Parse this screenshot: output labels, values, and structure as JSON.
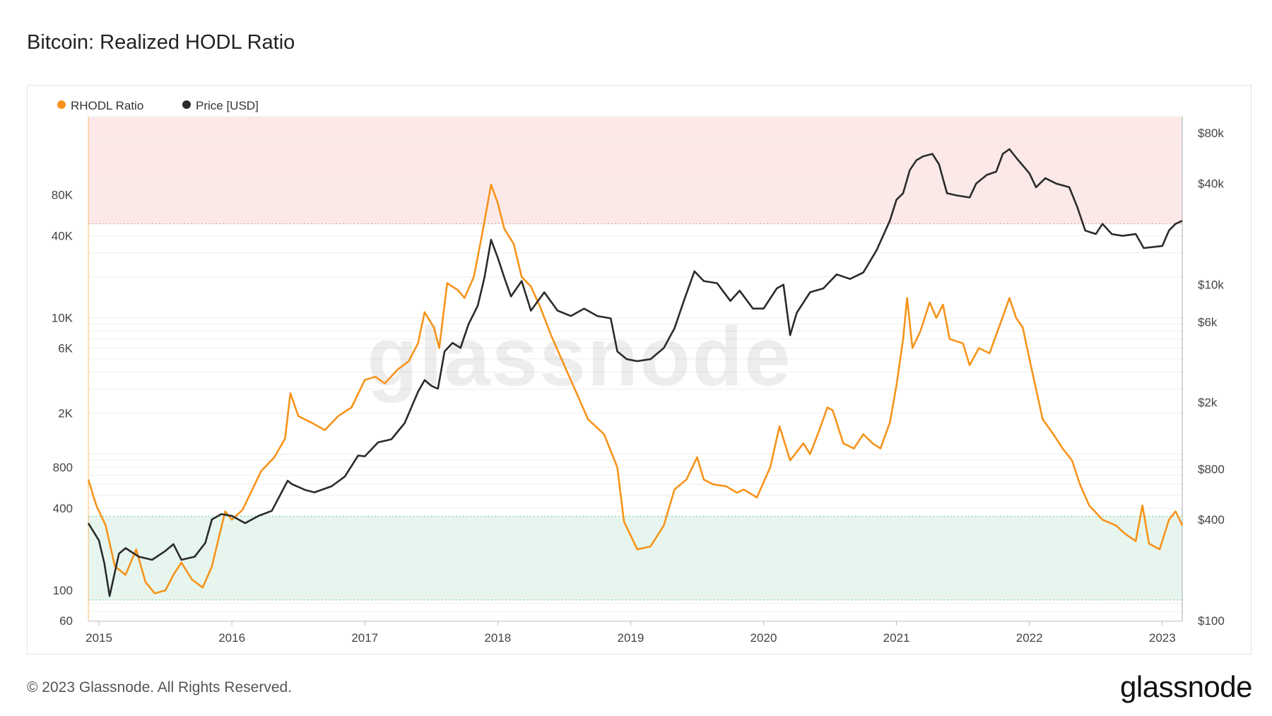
{
  "title": "Bitcoin: Realized HODL Ratio",
  "footer": "© 2023 Glassnode. All Rights Reserved.",
  "brand": "glassnode",
  "watermark": "glassnode",
  "colors": {
    "rhodl": "#f7931a",
    "price": "#2b2b2b",
    "top_band": "#fde8e8",
    "bottom_band": "#e6f6ee",
    "grid": "#eeeeee"
  },
  "chart_data": {
    "type": "line",
    "title": "Bitcoin: Realized HODL Ratio",
    "x_ticks": [
      "2015",
      "2016",
      "2017",
      "2018",
      "2019",
      "2020",
      "2021",
      "2022",
      "2023"
    ],
    "x_range": [
      2014.92,
      2023.15
    ],
    "y_left": {
      "scale": "log",
      "range": [
        60,
        300000
      ],
      "tick_labels": [
        "80K",
        "40K",
        "10K",
        "6K",
        "2K",
        "800",
        "400",
        "100",
        "60"
      ],
      "tick_values": [
        80000,
        40000,
        10000,
        6000,
        2000,
        800,
        400,
        100,
        60
      ]
    },
    "y_right": {
      "scale": "log",
      "range": [
        100,
        100000
      ],
      "tick_labels": [
        "$80k",
        "$40k",
        "$10k",
        "$6k",
        "$2k",
        "$800",
        "$400",
        "$100"
      ],
      "tick_values": [
        80000,
        40000,
        10000,
        6000,
        2000,
        800,
        400,
        100
      ]
    },
    "bands": [
      {
        "name": "top",
        "axis": "left",
        "from": 49000,
        "to": 300000
      },
      {
        "name": "bottom",
        "axis": "left",
        "from": 85,
        "to": 350
      }
    ],
    "legend": {
      "position": "top-left"
    },
    "series": [
      {
        "name": "RHODL Ratio",
        "axis": "left",
        "points": [
          [
            2014.92,
            650
          ],
          [
            2014.98,
            420
          ],
          [
            2015.05,
            300
          ],
          [
            2015.12,
            150
          ],
          [
            2015.2,
            130
          ],
          [
            2015.28,
            200
          ],
          [
            2015.35,
            115
          ],
          [
            2015.42,
            95
          ],
          [
            2015.5,
            100
          ],
          [
            2015.56,
            130
          ],
          [
            2015.62,
            160
          ],
          [
            2015.7,
            120
          ],
          [
            2015.78,
            105
          ],
          [
            2015.85,
            150
          ],
          [
            2015.9,
            240
          ],
          [
            2015.95,
            380
          ],
          [
            2016.0,
            330
          ],
          [
            2016.08,
            390
          ],
          [
            2016.15,
            540
          ],
          [
            2016.22,
            750
          ],
          [
            2016.32,
            950
          ],
          [
            2016.4,
            1300
          ],
          [
            2016.44,
            2800
          ],
          [
            2016.5,
            1900
          ],
          [
            2016.6,
            1700
          ],
          [
            2016.7,
            1500
          ],
          [
            2016.8,
            1900
          ],
          [
            2016.9,
            2200
          ],
          [
            2017.0,
            3500
          ],
          [
            2017.08,
            3700
          ],
          [
            2017.15,
            3300
          ],
          [
            2017.25,
            4200
          ],
          [
            2017.33,
            4800
          ],
          [
            2017.4,
            6500
          ],
          [
            2017.45,
            11000
          ],
          [
            2017.52,
            8500
          ],
          [
            2017.56,
            6000
          ],
          [
            2017.62,
            18000
          ],
          [
            2017.7,
            16000
          ],
          [
            2017.75,
            14000
          ],
          [
            2017.82,
            20000
          ],
          [
            2017.88,
            40000
          ],
          [
            2017.95,
            95000
          ],
          [
            2018.0,
            70000
          ],
          [
            2018.05,
            45000
          ],
          [
            2018.12,
            35000
          ],
          [
            2018.18,
            20000
          ],
          [
            2018.25,
            17000
          ],
          [
            2018.32,
            12000
          ],
          [
            2018.4,
            7500
          ],
          [
            2018.5,
            4500
          ],
          [
            2018.58,
            3000
          ],
          [
            2018.68,
            1800
          ],
          [
            2018.8,
            1400
          ],
          [
            2018.9,
            800
          ],
          [
            2018.95,
            320
          ],
          [
            2019.05,
            200
          ],
          [
            2019.15,
            210
          ],
          [
            2019.25,
            300
          ],
          [
            2019.33,
            550
          ],
          [
            2019.42,
            650
          ],
          [
            2019.5,
            950
          ],
          [
            2019.55,
            650
          ],
          [
            2019.62,
            600
          ],
          [
            2019.72,
            580
          ],
          [
            2019.8,
            520
          ],
          [
            2019.85,
            550
          ],
          [
            2019.95,
            480
          ],
          [
            2020.05,
            800
          ],
          [
            2020.12,
            1600
          ],
          [
            2020.2,
            900
          ],
          [
            2020.3,
            1200
          ],
          [
            2020.35,
            1000
          ],
          [
            2020.42,
            1500
          ],
          [
            2020.48,
            2200
          ],
          [
            2020.52,
            2100
          ],
          [
            2020.6,
            1200
          ],
          [
            2020.68,
            1100
          ],
          [
            2020.75,
            1400
          ],
          [
            2020.82,
            1200
          ],
          [
            2020.88,
            1100
          ],
          [
            2020.95,
            1700
          ],
          [
            2021.0,
            3200
          ],
          [
            2021.05,
            7000
          ],
          [
            2021.08,
            14000
          ],
          [
            2021.12,
            6000
          ],
          [
            2021.18,
            8000
          ],
          [
            2021.25,
            13000
          ],
          [
            2021.3,
            10000
          ],
          [
            2021.35,
            12500
          ],
          [
            2021.4,
            7000
          ],
          [
            2021.5,
            6500
          ],
          [
            2021.55,
            4500
          ],
          [
            2021.62,
            6000
          ],
          [
            2021.7,
            5500
          ],
          [
            2021.78,
            9000
          ],
          [
            2021.85,
            14000
          ],
          [
            2021.9,
            10000
          ],
          [
            2021.95,
            8500
          ],
          [
            2022.0,
            5000
          ],
          [
            2022.05,
            3000
          ],
          [
            2022.1,
            1800
          ],
          [
            2022.18,
            1400
          ],
          [
            2022.25,
            1100
          ],
          [
            2022.32,
            900
          ],
          [
            2022.38,
            600
          ],
          [
            2022.45,
            420
          ],
          [
            2022.55,
            330
          ],
          [
            2022.65,
            300
          ],
          [
            2022.72,
            260
          ],
          [
            2022.8,
            230
          ],
          [
            2022.85,
            420
          ],
          [
            2022.9,
            220
          ],
          [
            2022.98,
            200
          ],
          [
            2023.05,
            330
          ],
          [
            2023.1,
            380
          ],
          [
            2023.15,
            300
          ]
        ]
      },
      {
        "name": "Price [USD]",
        "axis": "right",
        "points": [
          [
            2014.92,
            380
          ],
          [
            2015.0,
            300
          ],
          [
            2015.04,
            220
          ],
          [
            2015.08,
            140
          ],
          [
            2015.15,
            250
          ],
          [
            2015.2,
            270
          ],
          [
            2015.3,
            240
          ],
          [
            2015.4,
            230
          ],
          [
            2015.5,
            260
          ],
          [
            2015.56,
            285
          ],
          [
            2015.62,
            230
          ],
          [
            2015.72,
            240
          ],
          [
            2015.8,
            290
          ],
          [
            2015.85,
            400
          ],
          [
            2015.92,
            430
          ],
          [
            2016.0,
            420
          ],
          [
            2016.1,
            380
          ],
          [
            2016.2,
            420
          ],
          [
            2016.3,
            450
          ],
          [
            2016.42,
            680
          ],
          [
            2016.45,
            650
          ],
          [
            2016.55,
            600
          ],
          [
            2016.62,
            580
          ],
          [
            2016.75,
            630
          ],
          [
            2016.85,
            720
          ],
          [
            2016.95,
            960
          ],
          [
            2017.0,
            950
          ],
          [
            2017.1,
            1150
          ],
          [
            2017.2,
            1200
          ],
          [
            2017.3,
            1500
          ],
          [
            2017.4,
            2300
          ],
          [
            2017.45,
            2700
          ],
          [
            2017.5,
            2500
          ],
          [
            2017.55,
            2400
          ],
          [
            2017.6,
            4000
          ],
          [
            2017.66,
            4500
          ],
          [
            2017.72,
            4200
          ],
          [
            2017.78,
            5800
          ],
          [
            2017.85,
            7500
          ],
          [
            2017.9,
            11000
          ],
          [
            2017.95,
            18500
          ],
          [
            2018.0,
            14500
          ],
          [
            2018.05,
            11000
          ],
          [
            2018.1,
            8500
          ],
          [
            2018.18,
            10500
          ],
          [
            2018.25,
            7000
          ],
          [
            2018.35,
            9000
          ],
          [
            2018.45,
            7000
          ],
          [
            2018.55,
            6500
          ],
          [
            2018.65,
            7200
          ],
          [
            2018.75,
            6500
          ],
          [
            2018.85,
            6300
          ],
          [
            2018.9,
            4000
          ],
          [
            2018.97,
            3600
          ],
          [
            2019.05,
            3500
          ],
          [
            2019.15,
            3600
          ],
          [
            2019.25,
            4200
          ],
          [
            2019.33,
            5500
          ],
          [
            2019.4,
            8000
          ],
          [
            2019.48,
            12000
          ],
          [
            2019.55,
            10500
          ],
          [
            2019.65,
            10200
          ],
          [
            2019.75,
            8000
          ],
          [
            2019.82,
            9200
          ],
          [
            2019.92,
            7200
          ],
          [
            2020.0,
            7200
          ],
          [
            2020.1,
            9500
          ],
          [
            2020.15,
            10000
          ],
          [
            2020.2,
            5000
          ],
          [
            2020.25,
            6800
          ],
          [
            2020.35,
            9000
          ],
          [
            2020.45,
            9500
          ],
          [
            2020.55,
            11500
          ],
          [
            2020.65,
            10800
          ],
          [
            2020.75,
            11800
          ],
          [
            2020.85,
            16000
          ],
          [
            2020.95,
            24000
          ],
          [
            2021.0,
            32000
          ],
          [
            2021.05,
            35000
          ],
          [
            2021.1,
            48000
          ],
          [
            2021.15,
            55000
          ],
          [
            2021.2,
            58000
          ],
          [
            2021.27,
            60000
          ],
          [
            2021.32,
            52000
          ],
          [
            2021.38,
            35000
          ],
          [
            2021.45,
            34000
          ],
          [
            2021.55,
            33000
          ],
          [
            2021.6,
            40000
          ],
          [
            2021.68,
            45000
          ],
          [
            2021.75,
            47000
          ],
          [
            2021.8,
            60000
          ],
          [
            2021.85,
            64000
          ],
          [
            2021.9,
            57000
          ],
          [
            2022.0,
            46000
          ],
          [
            2022.05,
            38000
          ],
          [
            2022.12,
            43000
          ],
          [
            2022.2,
            40000
          ],
          [
            2022.3,
            38000
          ],
          [
            2022.36,
            29000
          ],
          [
            2022.42,
            21000
          ],
          [
            2022.5,
            20000
          ],
          [
            2022.55,
            23000
          ],
          [
            2022.62,
            20000
          ],
          [
            2022.7,
            19500
          ],
          [
            2022.8,
            20000
          ],
          [
            2022.86,
            16500
          ],
          [
            2022.95,
            16800
          ],
          [
            2023.0,
            17000
          ],
          [
            2023.05,
            21000
          ],
          [
            2023.1,
            23000
          ],
          [
            2023.15,
            24000
          ]
        ]
      }
    ]
  }
}
